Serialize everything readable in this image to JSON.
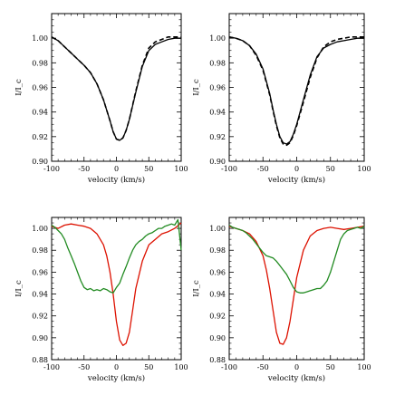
{
  "chart_data": [
    {
      "type": "line",
      "panel": "top-left",
      "xlabel": "velocity (km/s)",
      "ylabel": "I/I_c",
      "xlim": [
        -100,
        100
      ],
      "ylim": [
        0.9,
        1.02
      ],
      "xticks": [
        -100,
        -50,
        0,
        50,
        100
      ],
      "yticks": [
        0.9,
        0.92,
        0.94,
        0.96,
        0.98,
        1.0
      ],
      "ytick_labels": [
        "0.90",
        "0.92",
        "0.94",
        "0.96",
        "0.98",
        "1.00"
      ],
      "series": [
        {
          "style": "solid",
          "color": "#000000",
          "x": [
            -100,
            -90,
            -80,
            -70,
            -60,
            -50,
            -40,
            -30,
            -20,
            -10,
            -5,
            0,
            5,
            10,
            15,
            20,
            30,
            40,
            50,
            60,
            70,
            80,
            90,
            100
          ],
          "y": [
            1.001,
            0.998,
            0.993,
            0.988,
            0.983,
            0.978,
            0.972,
            0.963,
            0.95,
            0.933,
            0.924,
            0.918,
            0.917,
            0.919,
            0.925,
            0.934,
            0.956,
            0.977,
            0.99,
            0.995,
            0.997,
            0.999,
            1.0,
            1.0
          ]
        },
        {
          "style": "dashed",
          "color": "#000000",
          "x": [
            -100,
            -90,
            -80,
            -70,
            -60,
            -50,
            -40,
            -30,
            -20,
            -10,
            -5,
            0,
            5,
            10,
            15,
            20,
            30,
            40,
            50,
            60,
            70,
            80,
            90,
            100
          ],
          "y": [
            1.001,
            0.998,
            0.993,
            0.988,
            0.983,
            0.978,
            0.972,
            0.963,
            0.95,
            0.933,
            0.924,
            0.918,
            0.917,
            0.919,
            0.925,
            0.934,
            0.957,
            0.978,
            0.992,
            0.997,
            0.999,
            1.001,
            1.001,
            1.001
          ]
        }
      ]
    },
    {
      "type": "line",
      "panel": "top-right",
      "xlabel": "velocity (km/s)",
      "ylabel": "I/I_c",
      "xlim": [
        -100,
        100
      ],
      "ylim": [
        0.9,
        1.02
      ],
      "xticks": [
        -100,
        -50,
        0,
        50,
        100
      ],
      "yticks": [
        0.9,
        0.92,
        0.94,
        0.96,
        0.98,
        1.0
      ],
      "ytick_labels": [
        "0.90",
        "0.92",
        "0.94",
        "0.96",
        "0.98",
        "1.00"
      ],
      "series": [
        {
          "style": "solid",
          "color": "#000000",
          "x": [
            -100,
            -90,
            -80,
            -70,
            -60,
            -50,
            -40,
            -35,
            -30,
            -25,
            -20,
            -15,
            -10,
            -5,
            0,
            10,
            20,
            30,
            40,
            50,
            60,
            70,
            80,
            90,
            100
          ],
          "y": [
            1.001,
            1.0,
            0.998,
            0.994,
            0.987,
            0.975,
            0.955,
            0.942,
            0.93,
            0.92,
            0.915,
            0.914,
            0.916,
            0.922,
            0.93,
            0.95,
            0.97,
            0.985,
            0.992,
            0.995,
            0.997,
            0.998,
            0.999,
            1.0,
            1.0
          ]
        },
        {
          "style": "dashed",
          "color": "#000000",
          "x": [
            -100,
            -90,
            -80,
            -70,
            -60,
            -50,
            -40,
            -35,
            -30,
            -25,
            -20,
            -15,
            -10,
            -5,
            0,
            10,
            20,
            30,
            40,
            50,
            60,
            70,
            80,
            90,
            100
          ],
          "y": [
            1.001,
            1.0,
            0.998,
            0.994,
            0.986,
            0.974,
            0.954,
            0.941,
            0.929,
            0.919,
            0.914,
            0.913,
            0.915,
            0.921,
            0.929,
            0.948,
            0.968,
            0.984,
            0.993,
            0.997,
            0.999,
            1.0,
            1.001,
            1.001,
            1.001
          ]
        }
      ]
    },
    {
      "type": "line",
      "panel": "bottom-left",
      "xlabel": "velocity (km/s)",
      "ylabel": "I/I_c",
      "xlim": [
        -100,
        100
      ],
      "ylim": [
        0.88,
        1.01
      ],
      "xticks": [
        -100,
        -50,
        0,
        50,
        100
      ],
      "yticks": [
        0.88,
        0.9,
        0.92,
        0.94,
        0.96,
        0.98,
        1.0
      ],
      "ytick_labels": [
        "0.88",
        "0.90",
        "0.92",
        "0.94",
        "0.96",
        "0.98",
        "1.00"
      ],
      "series": [
        {
          "style": "solid",
          "color": "#dd1100",
          "x": [
            -100,
            -90,
            -80,
            -70,
            -60,
            -50,
            -40,
            -30,
            -20,
            -15,
            -10,
            -5,
            0,
            5,
            10,
            15,
            20,
            25,
            30,
            40,
            50,
            60,
            70,
            80,
            90,
            100
          ],
          "y": [
            1.002,
            1.0,
            1.003,
            1.004,
            1.003,
            1.002,
            1.0,
            0.995,
            0.985,
            0.975,
            0.96,
            0.94,
            0.915,
            0.898,
            0.893,
            0.895,
            0.905,
            0.925,
            0.945,
            0.97,
            0.985,
            0.99,
            0.995,
            0.997,
            1.0,
            1.005
          ]
        },
        {
          "style": "solid",
          "color": "#228b22",
          "x": [
            -100,
            -95,
            -90,
            -85,
            -80,
            -75,
            -70,
            -65,
            -60,
            -55,
            -50,
            -45,
            -40,
            -35,
            -30,
            -25,
            -20,
            -15,
            -10,
            -5,
            0,
            5,
            10,
            15,
            20,
            25,
            30,
            35,
            40,
            45,
            50,
            55,
            60,
            65,
            70,
            75,
            80,
            85,
            90,
            95,
            100
          ],
          "y": [
            1.003,
            1.001,
            0.998,
            0.995,
            0.99,
            0.982,
            0.975,
            0.968,
            0.96,
            0.952,
            0.946,
            0.944,
            0.945,
            0.943,
            0.944,
            0.943,
            0.945,
            0.944,
            0.942,
            0.941,
            0.946,
            0.95,
            0.958,
            0.965,
            0.973,
            0.98,
            0.985,
            0.988,
            0.99,
            0.993,
            0.995,
            0.996,
            0.998,
            1.0,
            1.0,
            1.002,
            1.003,
            1.004,
            1.003,
            1.008,
            0.98
          ]
        }
      ]
    },
    {
      "type": "line",
      "panel": "bottom-right",
      "xlabel": "velocity (km/s)",
      "ylabel": "I/I_c",
      "xlim": [
        -100,
        100
      ],
      "ylim": [
        0.88,
        1.01
      ],
      "xticks": [
        -100,
        -50,
        0,
        50,
        100
      ],
      "yticks": [
        0.88,
        0.9,
        0.92,
        0.94,
        0.96,
        0.98,
        1.0
      ],
      "ytick_labels": [
        "0.88",
        "0.90",
        "0.92",
        "0.94",
        "0.96",
        "0.98",
        "1.00"
      ],
      "series": [
        {
          "style": "solid",
          "color": "#dd1100",
          "x": [
            -100,
            -90,
            -80,
            -70,
            -60,
            -50,
            -45,
            -40,
            -35,
            -30,
            -25,
            -20,
            -15,
            -10,
            -5,
            0,
            10,
            20,
            30,
            40,
            50,
            60,
            70,
            80,
            90,
            100
          ],
          "y": [
            1.002,
            1.0,
            0.998,
            0.995,
            0.988,
            0.975,
            0.962,
            0.945,
            0.925,
            0.905,
            0.895,
            0.894,
            0.9,
            0.915,
            0.935,
            0.955,
            0.98,
            0.993,
            0.998,
            1.0,
            1.001,
            1.0,
            0.999,
            1.0,
            1.001,
            1.002
          ]
        },
        {
          "style": "solid",
          "color": "#228b22",
          "x": [
            -100,
            -95,
            -90,
            -85,
            -80,
            -75,
            -70,
            -65,
            -60,
            -55,
            -50,
            -45,
            -40,
            -35,
            -30,
            -25,
            -20,
            -15,
            -10,
            -5,
            0,
            5,
            10,
            15,
            20,
            25,
            30,
            35,
            40,
            45,
            50,
            55,
            60,
            65,
            70,
            75,
            80,
            85,
            90,
            95,
            100
          ],
          "y": [
            1.003,
            1.001,
            1.0,
            0.999,
            0.998,
            0.996,
            0.993,
            0.99,
            0.986,
            0.982,
            0.978,
            0.975,
            0.974,
            0.973,
            0.97,
            0.966,
            0.962,
            0.958,
            0.952,
            0.946,
            0.942,
            0.941,
            0.941,
            0.942,
            0.943,
            0.944,
            0.945,
            0.945,
            0.948,
            0.952,
            0.96,
            0.97,
            0.98,
            0.99,
            0.995,
            0.998,
            0.999,
            1.0,
            1.001,
            1.0,
            1.002
          ]
        }
      ]
    }
  ]
}
